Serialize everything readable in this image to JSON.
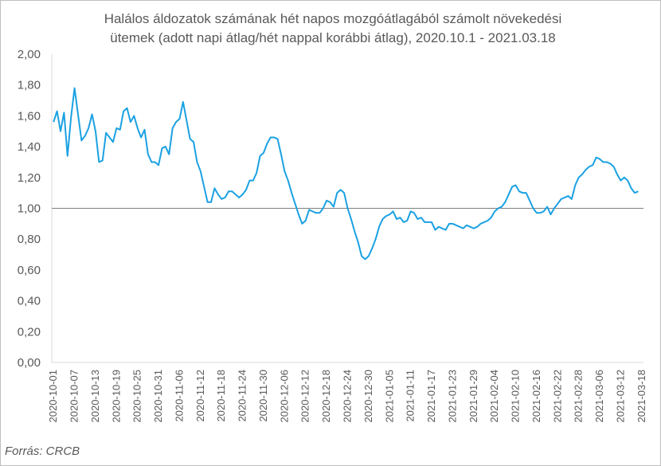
{
  "chart_data": {
    "type": "line",
    "title_line1": "Halálos áldozatok számának hét napos mozgóátlagából számolt növekedési",
    "title_line2": "ütemek (adott napi átlag/hét nappal korábbi átlag), 2020.10.1 - 2021.03.18",
    "source": "Forrás: CRCB",
    "ylim": [
      0,
      2
    ],
    "y_ticks": [
      "0,00",
      "0,20",
      "0,40",
      "0,60",
      "0,80",
      "1,00",
      "1,20",
      "1,40",
      "1,60",
      "1,80",
      "2,00"
    ],
    "y_tick_values": [
      0,
      0.2,
      0.4,
      0.6,
      0.8,
      1.0,
      1.2,
      1.4,
      1.6,
      1.8,
      2.0
    ],
    "reference_line": 1.0,
    "x_tick_labels": [
      "2020-10-01",
      "2020-10-07",
      "2020-10-13",
      "2020-10-19",
      "2020-10-25",
      "2020-10-31",
      "2020-11-06",
      "2020-11-12",
      "2020-11-18",
      "2020-11-24",
      "2020-11-30",
      "2020-12-06",
      "2020-12-12",
      "2020-12-18",
      "2020-12-24",
      "2020-12-30",
      "2021-01-05",
      "2021-01-11",
      "2021-01-17",
      "2021-01-23",
      "2021-01-29",
      "2021-02-04",
      "2021-02-10",
      "2021-02-16",
      "2021-02-22",
      "2021-02-28",
      "2021-03-06",
      "2021-03-12",
      "2021-03-18"
    ],
    "x_start": "2020-10-01",
    "x_end": "2021-03-18",
    "line_color": "#1ba1e2",
    "reference_color": "#7f7f7f",
    "series": [
      {
        "values": [
          1.56,
          1.63,
          1.5,
          1.62,
          1.34,
          1.59,
          1.78,
          1.61,
          1.44,
          1.47,
          1.52,
          1.61,
          1.5,
          1.3,
          1.31,
          1.49,
          1.46,
          1.43,
          1.52,
          1.51,
          1.63,
          1.65,
          1.56,
          1.6,
          1.52,
          1.46,
          1.51,
          1.35,
          1.3,
          1.3,
          1.28,
          1.39,
          1.4,
          1.35,
          1.52,
          1.56,
          1.58,
          1.69,
          1.57,
          1.45,
          1.43,
          1.3,
          1.24,
          1.14,
          1.04,
          1.04,
          1.13,
          1.09,
          1.06,
          1.07,
          1.11,
          1.11,
          1.09,
          1.07,
          1.09,
          1.12,
          1.18,
          1.18,
          1.23,
          1.34,
          1.36,
          1.42,
          1.46,
          1.46,
          1.45,
          1.35,
          1.24,
          1.18,
          1.1,
          1.03,
          0.96,
          0.9,
          0.92,
          0.99,
          0.98,
          0.97,
          0.97,
          1.0,
          1.05,
          1.04,
          1.01,
          1.1,
          1.12,
          1.1,
          1.0,
          0.93,
          0.85,
          0.78,
          0.69,
          0.67,
          0.69,
          0.74,
          0.8,
          0.88,
          0.93,
          0.95,
          0.96,
          0.98,
          0.93,
          0.94,
          0.91,
          0.92,
          0.98,
          0.97,
          0.93,
          0.94,
          0.91,
          0.91,
          0.91,
          0.86,
          0.88,
          0.87,
          0.86,
          0.9,
          0.9,
          0.89,
          0.88,
          0.87,
          0.89,
          0.88,
          0.87,
          0.88,
          0.9,
          0.91,
          0.92,
          0.94,
          0.98,
          1.0,
          1.01,
          1.04,
          1.09,
          1.14,
          1.15,
          1.11,
          1.1,
          1.1,
          1.05,
          1.0,
          0.97,
          0.97,
          0.98,
          1.01,
          0.96,
          1.0,
          1.03,
          1.06,
          1.07,
          1.08,
          1.06,
          1.15,
          1.2,
          1.22,
          1.25,
          1.27,
          1.28,
          1.33,
          1.32,
          1.3,
          1.3,
          1.29,
          1.27,
          1.22,
          1.18,
          1.2,
          1.18,
          1.13,
          1.1,
          1.11
        ]
      }
    ]
  }
}
